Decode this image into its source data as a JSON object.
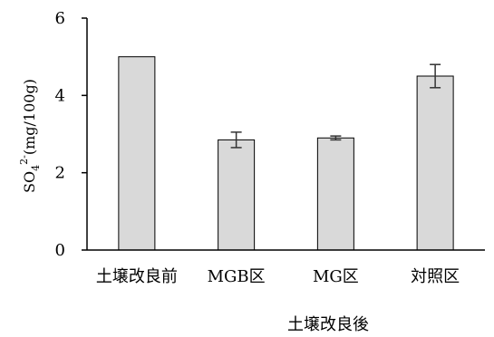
{
  "chart_data": {
    "type": "bar",
    "categories": [
      "土壌改良前",
      "MGB区",
      "MG区",
      "対照区"
    ],
    "values": [
      5.0,
      2.85,
      2.9,
      4.5
    ],
    "errors": [
      null,
      0.2,
      0.05,
      0.3
    ],
    "ylim": [
      0,
      6
    ],
    "yticks": [
      0,
      2,
      4,
      6
    ],
    "ylabel": {
      "prefix": "SO",
      "sub": "4",
      "sup": "2-",
      "suffix": "(mg/100g)"
    },
    "group_label": "土壌改良後",
    "bar_color": "#d9d9d9",
    "bar_edge_color": "#000000",
    "error_color": "#333333",
    "grid": false
  }
}
